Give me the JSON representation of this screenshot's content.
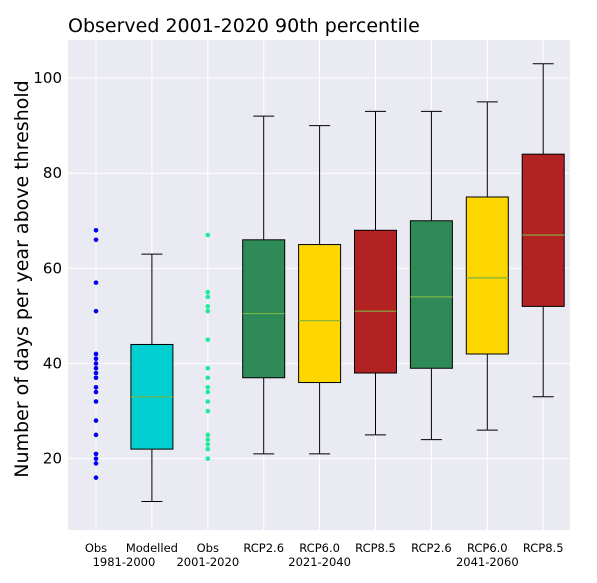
{
  "chart_data": {
    "type": "box",
    "title": "Observed 2001-2020 90th percentile",
    "xlabel": "",
    "ylabel": "Number of days per year above threshold",
    "ylim": [
      5,
      108
    ],
    "yticks": [
      20,
      40,
      60,
      80,
      100
    ],
    "grid": true,
    "categories": [
      "Obs",
      "Modelled",
      "Obs",
      "RCP2.6",
      "RCP6.0",
      "RCP8.5",
      "RCP2.6",
      "RCP6.0",
      "RCP8.5"
    ],
    "group_labels": [
      {
        "label": "1981-2000",
        "categories": [
          0,
          1
        ]
      },
      {
        "label": "2001-2020",
        "categories": [
          2
        ]
      },
      {
        "label": "2021-2040",
        "categories": [
          3,
          4,
          5
        ]
      },
      {
        "label": "2041-2060",
        "categories": [
          6,
          7,
          8
        ]
      }
    ],
    "points": [
      {
        "category": 0,
        "color": "#0000ee",
        "values": [
          68,
          66,
          57,
          51,
          42,
          41,
          40,
          39,
          38,
          37,
          35,
          34,
          32,
          28,
          25,
          21,
          20,
          19,
          16
        ]
      },
      {
        "category": 2,
        "color": "#1eeb9a",
        "values": [
          67,
          55,
          54,
          52,
          51,
          45,
          39,
          37,
          35,
          34,
          32,
          30,
          25,
          24,
          23,
          22,
          20
        ]
      }
    ],
    "boxes": [
      {
        "category": 1,
        "whisker_low": 11,
        "q1": 22,
        "median": 33,
        "q3": 44,
        "whisker_high": 63,
        "color": "#00ced1"
      },
      {
        "category": 3,
        "whisker_low": 21,
        "q1": 37,
        "median": 50.5,
        "q3": 66,
        "whisker_high": 92,
        "color": "#2e8b57"
      },
      {
        "category": 4,
        "whisker_low": 21,
        "q1": 36,
        "median": 49,
        "q3": 65,
        "whisker_high": 90,
        "color": "#ffd700"
      },
      {
        "category": 5,
        "whisker_low": 25,
        "q1": 38,
        "median": 51,
        "q3": 68,
        "whisker_high": 93,
        "color": "#b22222"
      },
      {
        "category": 6,
        "whisker_low": 24,
        "q1": 39,
        "median": 54,
        "q3": 70,
        "whisker_high": 93,
        "color": "#2e8b57"
      },
      {
        "category": 7,
        "whisker_low": 26,
        "q1": 42,
        "median": 58,
        "q3": 75,
        "whisker_high": 95,
        "color": "#ffd700"
      },
      {
        "category": 8,
        "whisker_low": 33,
        "q1": 52,
        "median": 67,
        "q3": 84,
        "whisker_high": 103,
        "color": "#b22222"
      }
    ],
    "median_color": "#7cb342",
    "background_color": "#eaeaf2",
    "grid_color": "#ffffff"
  }
}
